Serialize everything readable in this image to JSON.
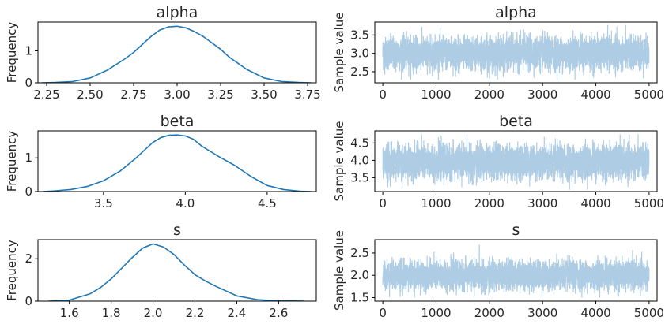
{
  "chart_data": [
    {
      "type": "line",
      "title": "alpha",
      "xlabel": "",
      "ylabel": "Frequency",
      "xlim": [
        2.2,
        3.8
      ],
      "ylim": [
        0,
        1.9
      ],
      "xticks": [
        "2.25",
        "2.50",
        "2.75",
        "3.00",
        "3.25",
        "3.50",
        "3.75"
      ],
      "yticks": [
        "0",
        "1"
      ],
      "grid": false,
      "series": [
        {
          "color": "#1f77b4",
          "x": [
            2.22,
            2.3,
            2.4,
            2.5,
            2.6,
            2.7,
            2.75,
            2.8,
            2.85,
            2.9,
            2.95,
            3.0,
            3.05,
            3.1,
            3.15,
            3.2,
            3.25,
            3.3,
            3.4,
            3.5,
            3.6,
            3.7,
            3.77
          ],
          "y": [
            0.0,
            0.01,
            0.04,
            0.15,
            0.4,
            0.75,
            0.95,
            1.2,
            1.45,
            1.65,
            1.75,
            1.77,
            1.72,
            1.6,
            1.45,
            1.25,
            1.05,
            0.8,
            0.42,
            0.15,
            0.04,
            0.01,
            0.0
          ]
        }
      ]
    },
    {
      "type": "line",
      "title": "alpha",
      "xlabel": "",
      "ylabel": "Sample value",
      "xlim": [
        -150,
        5150
      ],
      "ylim": [
        2.2,
        3.85
      ],
      "xticks": [
        "0",
        "1000",
        "2000",
        "3000",
        "4000",
        "5000"
      ],
      "yticks": [
        "2.5",
        "3.0",
        "3.5"
      ],
      "grid": false,
      "trace": {
        "n": 5000,
        "mean": 3.0,
        "sd": 0.22,
        "min": 2.28,
        "max": 3.77
      },
      "series": [
        {
          "color": "#aecde4"
        }
      ]
    },
    {
      "type": "line",
      "title": "beta",
      "xlabel": "",
      "ylabel": "Frequency",
      "xlim": [
        3.1,
        4.8
      ],
      "ylim": [
        0,
        1.8
      ],
      "xticks": [
        "3.5",
        "4.0",
        "4.5"
      ],
      "yticks": [
        "0",
        "1"
      ],
      "grid": false,
      "series": [
        {
          "color": "#1f77b4",
          "x": [
            3.13,
            3.2,
            3.3,
            3.4,
            3.5,
            3.6,
            3.7,
            3.8,
            3.85,
            3.9,
            3.95,
            4.0,
            4.05,
            4.1,
            4.2,
            4.3,
            4.4,
            4.5,
            4.6,
            4.7,
            4.77
          ],
          "y": [
            0.0,
            0.02,
            0.06,
            0.15,
            0.32,
            0.6,
            1.0,
            1.45,
            1.6,
            1.67,
            1.68,
            1.65,
            1.55,
            1.35,
            1.05,
            0.78,
            0.45,
            0.18,
            0.06,
            0.01,
            0.0
          ]
        }
      ]
    },
    {
      "type": "line",
      "title": "beta",
      "xlabel": "",
      "ylabel": "Sample value",
      "xlim": [
        -150,
        5150
      ],
      "ylim": [
        3.1,
        4.85
      ],
      "xticks": [
        "0",
        "1000",
        "2000",
        "3000",
        "4000",
        "5000"
      ],
      "yticks": [
        "3.5",
        "4.0",
        "4.5"
      ],
      "grid": false,
      "trace": {
        "n": 5000,
        "mean": 3.95,
        "sd": 0.24,
        "min": 3.15,
        "max": 4.75
      },
      "series": [
        {
          "color": "#aecde4"
        }
      ]
    },
    {
      "type": "line",
      "title": "s",
      "xlabel": "",
      "ylabel": "Frequency",
      "xlim": [
        1.45,
        2.78
      ],
      "ylim": [
        0,
        2.9
      ],
      "xticks": [
        "1.6",
        "1.8",
        "2.0",
        "2.2",
        "2.4",
        "2.6"
      ],
      "yticks": [
        "0",
        "2"
      ],
      "grid": false,
      "series": [
        {
          "color": "#1f77b4",
          "x": [
            1.5,
            1.6,
            1.7,
            1.75,
            1.8,
            1.85,
            1.9,
            1.95,
            2.0,
            2.05,
            2.1,
            2.15,
            2.2,
            2.25,
            2.3,
            2.4,
            2.5,
            2.6,
            2.72
          ],
          "y": [
            0.0,
            0.05,
            0.35,
            0.65,
            1.05,
            1.55,
            2.05,
            2.5,
            2.7,
            2.55,
            2.2,
            1.7,
            1.25,
            0.95,
            0.7,
            0.25,
            0.07,
            0.01,
            0.0
          ]
        }
      ]
    },
    {
      "type": "line",
      "title": "s",
      "xlabel": "",
      "ylabel": "Sample value",
      "xlim": [
        -150,
        5150
      ],
      "ylim": [
        1.42,
        2.8
      ],
      "xticks": [
        "0",
        "1000",
        "2000",
        "3000",
        "4000",
        "5000"
      ],
      "yticks": [
        "1.5",
        "2.0",
        "2.5"
      ],
      "grid": false,
      "trace": {
        "n": 5000,
        "mean": 2.0,
        "sd": 0.16,
        "min": 1.5,
        "max": 2.72
      },
      "series": [
        {
          "color": "#aecde4"
        }
      ]
    }
  ]
}
